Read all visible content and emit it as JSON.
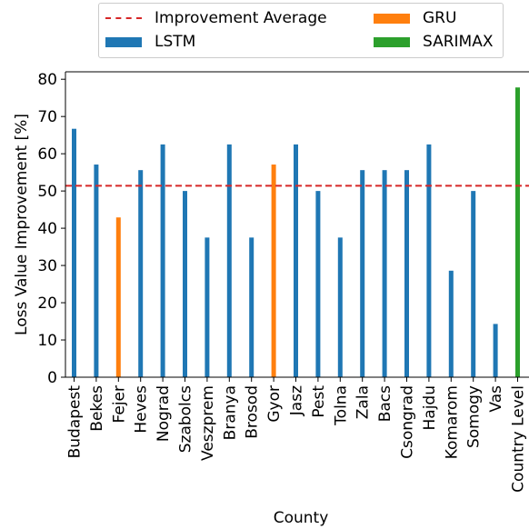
{
  "chart_data": {
    "type": "bar",
    "xlabel": "County",
    "ylabel": "Loss Value Improvement [%]",
    "ylim": [
      0,
      82
    ],
    "yticks": [
      0,
      10,
      20,
      30,
      40,
      50,
      60,
      70,
      80
    ],
    "categories": [
      "Budapest",
      "Bekes",
      "Fejer",
      "Heves",
      "Nograd",
      "Szabolcs",
      "Veszprem",
      "Branya",
      "Brosod",
      "Gyor",
      "Jasz",
      "Pest",
      "Tolna",
      "Zala",
      "Bacs",
      "Csongrad",
      "Hajdu",
      "Komarom",
      "Somogy",
      "Vas",
      "Country Level"
    ],
    "series": [
      {
        "name": "LSTM",
        "color": "#1f77b4",
        "values": [
          66.7,
          57.1,
          null,
          55.6,
          62.5,
          50.0,
          37.5,
          62.5,
          37.5,
          null,
          62.5,
          50.0,
          37.5,
          55.6,
          55.6,
          55.6,
          62.5,
          28.6,
          50.0,
          14.3,
          null
        ]
      },
      {
        "name": "GRU",
        "color": "#ff7f0e",
        "values": [
          null,
          null,
          42.9,
          null,
          null,
          null,
          null,
          null,
          null,
          57.1,
          null,
          null,
          null,
          null,
          null,
          null,
          null,
          null,
          null,
          null,
          null
        ]
      },
      {
        "name": "SARIMAX",
        "color": "#2ca02c",
        "values": [
          null,
          null,
          null,
          null,
          null,
          null,
          null,
          null,
          null,
          null,
          null,
          null,
          null,
          null,
          null,
          null,
          null,
          null,
          null,
          null,
          77.8
        ]
      }
    ],
    "reference_line": {
      "name": "Improvement Average",
      "value": 51.4,
      "color": "#d62728",
      "style": "dashed"
    },
    "legend": {
      "position": "top-center",
      "entries": [
        {
          "label": "Improvement Average",
          "kind": "line",
          "color": "#d62728"
        },
        {
          "label": "GRU",
          "kind": "bar",
          "color": "#ff7f0e"
        },
        {
          "label": "LSTM",
          "kind": "bar",
          "color": "#1f77b4"
        },
        {
          "label": "SARIMAX",
          "kind": "bar",
          "color": "#2ca02c"
        }
      ]
    },
    "grid": false
  }
}
